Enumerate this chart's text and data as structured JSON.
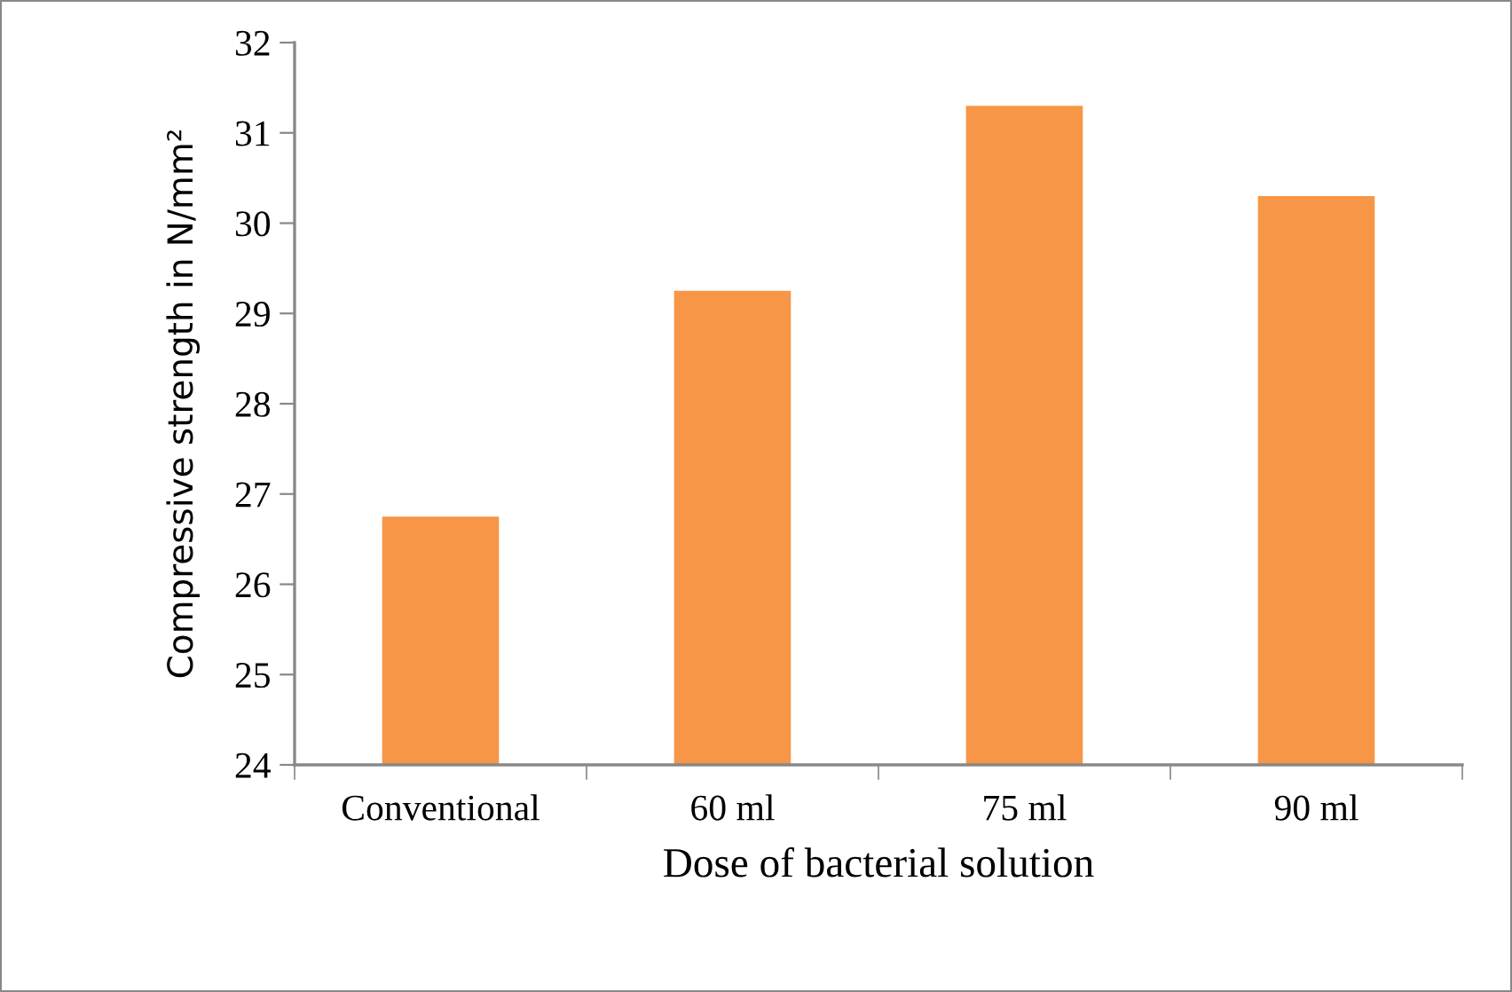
{
  "chart_data": {
    "type": "bar",
    "xlabel": "Dose of bacterial solution",
    "ylabel": "Compressive strength in N/mm²",
    "categories": [
      "Conventional",
      "60 ml",
      "75 ml",
      "90 ml"
    ],
    "values": [
      26.75,
      29.25,
      31.3,
      30.3
    ],
    "color": "#f79646",
    "ylim": [
      24,
      32
    ],
    "yticks": [
      24,
      25,
      26,
      27,
      28,
      29,
      30,
      31,
      32
    ],
    "grid": false,
    "legend": false
  }
}
